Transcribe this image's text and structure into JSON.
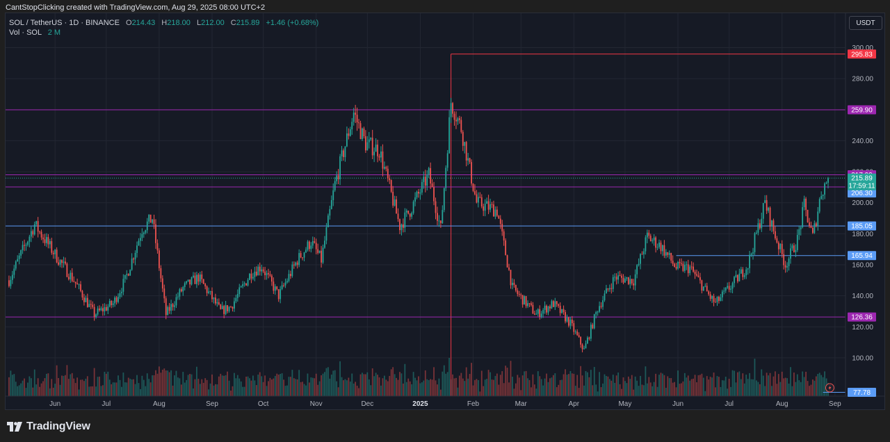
{
  "header": {
    "caption": "CantStopClicking created with TradingView.com, Aug 29, 2025 08:00 UTC+2"
  },
  "legend": {
    "symbol": "SOL / TetherUS · 1D · BINANCE",
    "o_label": "O",
    "o_value": "214.43",
    "h_label": "H",
    "h_value": "218.00",
    "l_label": "L",
    "l_value": "212.00",
    "c_label": "C",
    "c_value": "215.89",
    "change": "+1.46 (+0.68%)",
    "vol_label": "Vol · SOL",
    "vol_value": "2 M"
  },
  "currency_button": "USDT",
  "footer": {
    "brand": "TradingView"
  },
  "colors": {
    "up": "#26a69a",
    "down": "#ef5350",
    "background": "#161a25",
    "magenta_line": "#9c27b0",
    "blue_line": "#5b9cf6",
    "red_line": "#f23645"
  },
  "chart_data": {
    "type": "candlestick",
    "title": "SOL / TetherUS · 1D · BINANCE",
    "ylim": [
      76,
      303
    ],
    "y_ticks": [
      100,
      120,
      140,
      160,
      180,
      200,
      220,
      240,
      260,
      280,
      300
    ],
    "y_tick_labels": [
      "100.00",
      "120.00",
      "140.00",
      "160.00",
      "180.00",
      "200.00",
      "220.00",
      "240.00",
      "260.00",
      "280.00",
      "300.00"
    ],
    "x_tick_labels": [
      {
        "date": "2024-06-01",
        "label": "Jun",
        "bold": false
      },
      {
        "date": "2024-07-01",
        "label": "Jul",
        "bold": false
      },
      {
        "date": "2024-08-01",
        "label": "Aug",
        "bold": false
      },
      {
        "date": "2024-09-01",
        "label": "Sep",
        "bold": false
      },
      {
        "date": "2024-10-01",
        "label": "Oct",
        "bold": false
      },
      {
        "date": "2024-11-01",
        "label": "Nov",
        "bold": false
      },
      {
        "date": "2024-12-01",
        "label": "Dec",
        "bold": false
      },
      {
        "date": "2025-01-01",
        "label": "2025",
        "bold": true
      },
      {
        "date": "2025-02-01",
        "label": "Feb",
        "bold": false
      },
      {
        "date": "2025-03-01",
        "label": "Mar",
        "bold": false
      },
      {
        "date": "2025-04-01",
        "label": "Apr",
        "bold": false
      },
      {
        "date": "2025-05-01",
        "label": "May",
        "bold": false
      },
      {
        "date": "2025-06-01",
        "label": "Jun",
        "bold": false
      },
      {
        "date": "2025-07-01",
        "label": "Jul",
        "bold": false
      },
      {
        "date": "2025-08-01",
        "label": "Aug",
        "bold": false
      },
      {
        "date": "2025-09-01",
        "label": "Sep",
        "bold": false
      }
    ],
    "price_path": [
      [
        "2024-05-05",
        150
      ],
      [
        "2024-05-20",
        186
      ],
      [
        "2024-06-02",
        165
      ],
      [
        "2024-06-12",
        150
      ],
      [
        "2024-06-24",
        128
      ],
      [
        "2024-07-05",
        135
      ],
      [
        "2024-07-12",
        150
      ],
      [
        "2024-07-22",
        183
      ],
      [
        "2024-07-28",
        190
      ],
      [
        "2024-08-05",
        128
      ],
      [
        "2024-08-15",
        145
      ],
      [
        "2024-08-24",
        152
      ],
      [
        "2024-09-06",
        130
      ],
      [
        "2024-09-12",
        133
      ],
      [
        "2024-09-24",
        155
      ],
      [
        "2024-09-30",
        159
      ],
      [
        "2024-10-10",
        140
      ],
      [
        "2024-10-21",
        163
      ],
      [
        "2024-10-29",
        175
      ],
      [
        "2024-11-04",
        163
      ],
      [
        "2024-11-12",
        212
      ],
      [
        "2024-11-23",
        258
      ],
      [
        "2024-11-30",
        238
      ],
      [
        "2024-12-08",
        234
      ],
      [
        "2024-12-20",
        185
      ],
      [
        "2024-12-26",
        195
      ],
      [
        "2025-01-06",
        218
      ],
      [
        "2025-01-13",
        183
      ],
      [
        "2025-01-19",
        265
      ],
      [
        "2025-01-25",
        248
      ],
      [
        "2025-02-03",
        200
      ],
      [
        "2025-02-15",
        195
      ],
      [
        "2025-02-24",
        145
      ],
      [
        "2025-03-10",
        128
      ],
      [
        "2025-03-20",
        135
      ],
      [
        "2025-03-30",
        122
      ],
      [
        "2025-04-07",
        105
      ],
      [
        "2025-04-15",
        132
      ],
      [
        "2025-04-25",
        152
      ],
      [
        "2025-05-06",
        150
      ],
      [
        "2025-05-14",
        178
      ],
      [
        "2025-05-22",
        172
      ],
      [
        "2025-05-31",
        158
      ],
      [
        "2025-06-08",
        158
      ],
      [
        "2025-06-20",
        139
      ],
      [
        "2025-06-23",
        135
      ],
      [
        "2025-07-05",
        150
      ],
      [
        "2025-07-12",
        160
      ],
      [
        "2025-07-22",
        200
      ],
      [
        "2025-07-27",
        182
      ],
      [
        "2025-08-03",
        160
      ],
      [
        "2025-08-10",
        176
      ],
      [
        "2025-08-14",
        198
      ],
      [
        "2025-08-19",
        178
      ],
      [
        "2025-08-24",
        207
      ],
      [
        "2025-08-28",
        215.89
      ]
    ],
    "annotations": [
      {
        "label": "295.83",
        "value": 295.83,
        "color": "#f23645",
        "line": "red"
      },
      {
        "label": "259.90",
        "value": 259.9,
        "color": "#9c27b0",
        "line": "magenta"
      },
      {
        "label": "217.99",
        "value": 217.99,
        "color": "#9c27b0",
        "line": "magenta"
      },
      {
        "label": "210.18",
        "value": 210.18,
        "color": "#9c27b0",
        "line": "magenta"
      },
      {
        "label": "206.30",
        "value": 206.3,
        "color": "#5b9cf6",
        "line": "none"
      },
      {
        "label": "185.05",
        "value": 185.05,
        "color": "#5b9cf6",
        "line": "blue"
      },
      {
        "label": "165.94",
        "value": 165.94,
        "color": "#5b9cf6",
        "line": "blue-partial"
      },
      {
        "label": "126.36",
        "value": 126.36,
        "color": "#9c27b0",
        "line": "magenta"
      },
      {
        "label": "77.78",
        "value": 77.78,
        "color": "#5b9cf6",
        "line": "blue-partial"
      }
    ],
    "last_price": {
      "value": 215.89,
      "label": "215.89",
      "countdown": "17:59:11",
      "color": "#26a69a"
    },
    "volume_note": "Volume histogram (SOL) at the bottom of the pane"
  }
}
